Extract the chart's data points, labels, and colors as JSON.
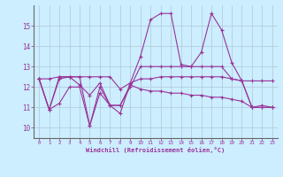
{
  "xlabel": "Windchill (Refroidissement éolien,°C)",
  "background_color": "#cceeff",
  "grid_color": "#b0c8d8",
  "line_color": "#993399",
  "xlim": [
    -0.5,
    23.5
  ],
  "ylim": [
    9.5,
    16.0
  ],
  "yticks": [
    10,
    11,
    12,
    13,
    14,
    15
  ],
  "xticks": [
    0,
    1,
    2,
    3,
    4,
    5,
    6,
    7,
    8,
    9,
    10,
    11,
    12,
    13,
    14,
    15,
    16,
    17,
    18,
    19,
    20,
    21,
    22,
    23
  ],
  "series": {
    "line1": {
      "x": [
        0,
        1,
        2,
        3,
        4,
        5,
        6,
        7,
        8,
        9,
        10,
        11,
        12,
        13,
        14,
        15,
        16,
        17,
        18,
        19,
        20,
        21,
        22,
        23
      ],
      "y": [
        12.4,
        10.9,
        12.4,
        12.5,
        12.5,
        10.1,
        12.0,
        11.1,
        10.7,
        12.2,
        13.5,
        15.3,
        15.6,
        15.6,
        13.1,
        13.0,
        13.7,
        15.6,
        14.8,
        13.2,
        12.3,
        11.0,
        11.1,
        11.0
      ]
    },
    "line2": {
      "x": [
        0,
        1,
        2,
        3,
        4,
        5,
        6,
        7,
        8,
        9,
        10,
        11,
        12,
        13,
        14,
        15,
        16,
        17,
        18,
        19,
        20,
        21,
        22,
        23
      ],
      "y": [
        12.4,
        10.9,
        12.5,
        12.5,
        12.1,
        11.6,
        12.2,
        11.1,
        11.1,
        12.0,
        13.0,
        13.0,
        13.0,
        13.0,
        13.0,
        13.0,
        13.0,
        13.0,
        13.0,
        12.4,
        12.3,
        11.0,
        11.0,
        11.0
      ]
    },
    "line3": {
      "x": [
        0,
        1,
        2,
        3,
        4,
        5,
        6,
        7,
        8,
        9,
        10,
        11,
        12,
        13,
        14,
        15,
        16,
        17,
        18,
        19,
        20,
        21,
        22,
        23
      ],
      "y": [
        12.4,
        12.4,
        12.5,
        12.5,
        12.5,
        12.5,
        12.5,
        12.5,
        11.9,
        12.2,
        12.4,
        12.4,
        12.5,
        12.5,
        12.5,
        12.5,
        12.5,
        12.5,
        12.5,
        12.4,
        12.3,
        12.3,
        12.3,
        12.3
      ]
    },
    "line4": {
      "x": [
        0,
        1,
        2,
        3,
        4,
        5,
        6,
        7,
        8,
        9,
        10,
        11,
        12,
        13,
        14,
        15,
        16,
        17,
        18,
        19,
        20,
        21,
        22,
        23
      ],
      "y": [
        12.4,
        10.9,
        11.2,
        12.0,
        12.0,
        10.1,
        11.7,
        11.1,
        11.1,
        12.1,
        11.9,
        11.8,
        11.8,
        11.7,
        11.7,
        11.6,
        11.6,
        11.5,
        11.5,
        11.4,
        11.3,
        11.0,
        11.0,
        11.0
      ]
    }
  }
}
